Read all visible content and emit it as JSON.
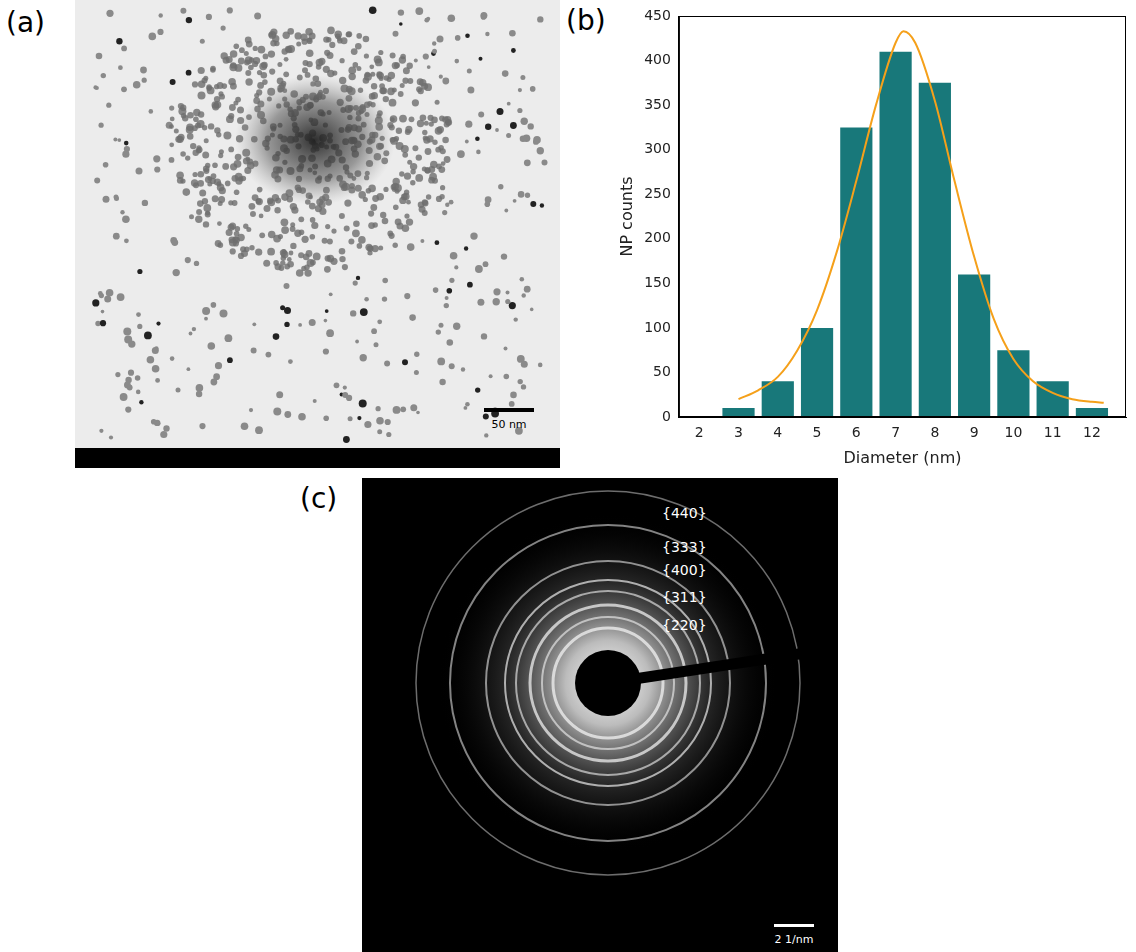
{
  "panel_labels": [
    "(a)",
    "(b)",
    "(c)"
  ],
  "tem_image": {
    "scale_bar": "50 nm"
  },
  "chart_data": {
    "type": "bar",
    "x_label": "Diameter (nm)",
    "y_label": "NP counts",
    "x": [
      3,
      4,
      5,
      6,
      7,
      8,
      9,
      10,
      11,
      12
    ],
    "values": [
      10,
      40,
      100,
      325,
      410,
      375,
      160,
      75,
      40,
      10
    ],
    "color": "#18787a",
    "curve": {
      "type": "line",
      "color": "#f5a01a",
      "x": [
        3,
        3.5,
        4,
        4.5,
        5,
        5.5,
        6,
        6.5,
        7,
        7.2,
        7.5,
        8,
        8.5,
        9,
        9.5,
        10,
        10.5,
        11,
        11.5,
        12,
        12.3
      ],
      "values": [
        20,
        30,
        45,
        75,
        120,
        185,
        265,
        350,
        420,
        433,
        420,
        355,
        265,
        180,
        110,
        65,
        40,
        27,
        20,
        17,
        16
      ]
    },
    "xlim": [
      2,
      12.35
    ],
    "xticks": [
      2,
      3,
      4,
      5,
      6,
      7,
      8,
      9,
      10,
      11,
      12
    ],
    "ylim": [
      0,
      450
    ],
    "yticks": [
      0,
      50,
      100,
      150,
      200,
      250,
      300,
      350,
      400,
      450
    ],
    "grid": false
  },
  "diffraction_pattern": {
    "scale_bar": "2 1/nm",
    "ring_labels": [
      "{440}",
      "{333}",
      "{400}",
      "{311}",
      "{220}"
    ]
  }
}
